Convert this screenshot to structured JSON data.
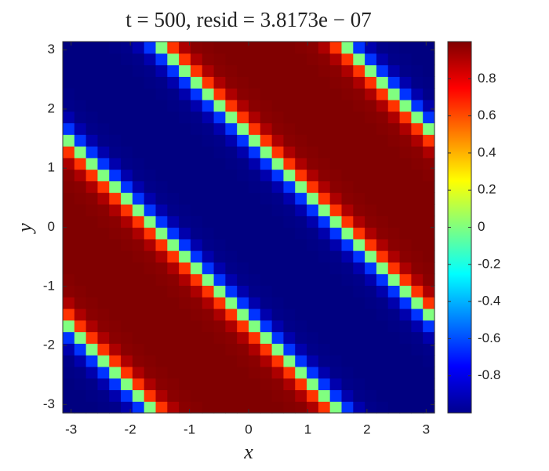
{
  "chart_data": {
    "type": "heatmap",
    "title": "t = 500,  resid = 3.8173e − 07",
    "x_label": "x",
    "y_label": "y",
    "colormap": "jet",
    "xlim": [
      -3.14159,
      3.14159
    ],
    "ylim": [
      -3.14159,
      3.14159
    ],
    "xticks": [
      -3,
      -2,
      -1,
      0,
      1,
      2,
      3
    ],
    "yticks": [
      -3,
      -2,
      -1,
      0,
      1,
      2,
      3
    ],
    "clim": [
      -1,
      1
    ],
    "cticks": [
      -0.8,
      -0.6,
      -0.4,
      -0.2,
      0,
      0.2,
      0.4,
      0.6,
      0.8
    ],
    "z": [
      [
        -1,
        -1,
        -1,
        -0.99,
        -0.98,
        -0.91,
        -0.65,
        0,
        0.65,
        0.91,
        0.98,
        0.99,
        1,
        1,
        1,
        1,
        1,
        1,
        1,
        0.99,
        0.98,
        0.91,
        0.65,
        0,
        -0.65,
        -0.91,
        -0.98,
        -0.99,
        -1,
        -1,
        -1,
        -1
      ],
      [
        -1,
        -1,
        -0.99,
        -0.98,
        -0.91,
        -0.65,
        0,
        0.65,
        0.91,
        0.98,
        0.99,
        1,
        1,
        1,
        1,
        1,
        1,
        1,
        0.99,
        0.98,
        0.91,
        0.65,
        0,
        -0.65,
        -0.91,
        -0.98,
        -0.99,
        -1,
        -1,
        -1,
        -1,
        -1
      ],
      [
        -1,
        -0.99,
        -0.98,
        -0.91,
        -0.65,
        0,
        0.65,
        0.91,
        0.98,
        0.99,
        1,
        1,
        1,
        1,
        1,
        1,
        1,
        0.99,
        0.98,
        0.91,
        0.65,
        0,
        -0.65,
        -0.91,
        -0.98,
        -0.99,
        -1,
        -1,
        -1,
        -1,
        -1,
        -1
      ],
      [
        -0.99,
        -0.98,
        -0.91,
        -0.65,
        0,
        0.65,
        0.91,
        0.98,
        0.99,
        1,
        1,
        1,
        1,
        1,
        1,
        1,
        0.99,
        0.98,
        0.91,
        0.65,
        0,
        -0.65,
        -0.91,
        -0.98,
        -0.99,
        -1,
        -1,
        -1,
        -1,
        -1,
        -1,
        -1
      ],
      [
        -0.98,
        -0.91,
        -0.65,
        0,
        0.65,
        0.91,
        0.98,
        0.99,
        1,
        1,
        1,
        1,
        1,
        1,
        1,
        0.99,
        0.98,
        0.91,
        0.65,
        0,
        -0.65,
        -0.91,
        -0.98,
        -0.99,
        -1,
        -1,
        -1,
        -1,
        -1,
        -1,
        -1,
        -0.99
      ],
      [
        -0.91,
        -0.65,
        0,
        0.65,
        0.91,
        0.98,
        0.99,
        1,
        1,
        1,
        1,
        1,
        1,
        1,
        0.99,
        0.98,
        0.91,
        0.65,
        0,
        -0.65,
        -0.91,
        -0.98,
        -0.99,
        -1,
        -1,
        -1,
        -1,
        -1,
        -1,
        -1,
        -0.99,
        -0.98
      ],
      [
        -0.65,
        0,
        0.65,
        0.91,
        0.98,
        0.99,
        1,
        1,
        1,
        1,
        1,
        1,
        1,
        0.99,
        0.98,
        0.91,
        0.65,
        0,
        -0.65,
        -0.91,
        -0.98,
        -0.99,
        -1,
        -1,
        -1,
        -1,
        -1,
        -1,
        -1,
        -0.99,
        -0.98,
        -0.91
      ],
      [
        0,
        0.65,
        0.91,
        0.98,
        0.99,
        1,
        1,
        1,
        1,
        1,
        1,
        1,
        0.99,
        0.98,
        0.91,
        0.65,
        0,
        -0.65,
        -0.91,
        -0.98,
        -0.99,
        -1,
        -1,
        -1,
        -1,
        -1,
        -1,
        -1,
        -0.99,
        -0.98,
        -0.91,
        -0.65
      ],
      [
        0.65,
        0.91,
        0.98,
        0.99,
        1,
        1,
        1,
        1,
        1,
        1,
        1,
        0.99,
        0.98,
        0.91,
        0.65,
        0,
        -0.65,
        -0.91,
        -0.98,
        -0.99,
        -1,
        -1,
        -1,
        -1,
        -1,
        -1,
        -1,
        -0.99,
        -0.98,
        -0.91,
        -0.65,
        0
      ],
      [
        0.91,
        0.98,
        0.99,
        1,
        1,
        1,
        1,
        1,
        1,
        1,
        0.99,
        0.98,
        0.91,
        0.65,
        0,
        -0.65,
        -0.91,
        -0.98,
        -0.99,
        -1,
        -1,
        -1,
        -1,
        -1,
        -1,
        -1,
        -0.99,
        -0.98,
        -0.91,
        -0.65,
        0,
        0.65
      ],
      [
        0.98,
        0.99,
        1,
        1,
        1,
        1,
        1,
        1,
        1,
        0.99,
        0.98,
        0.91,
        0.65,
        0,
        -0.65,
        -0.91,
        -0.98,
        -0.99,
        -1,
        -1,
        -1,
        -1,
        -1,
        -1,
        -1,
        -0.99,
        -0.98,
        -0.91,
        -0.65,
        0,
        0.65,
        0.91
      ],
      [
        0.99,
        1,
        1,
        1,
        1,
        1,
        1,
        1,
        0.99,
        0.98,
        0.91,
        0.65,
        0,
        -0.65,
        -0.91,
        -0.98,
        -0.99,
        -1,
        -1,
        -1,
        -1,
        -1,
        -1,
        -1,
        -0.99,
        -0.98,
        -0.91,
        -0.65,
        0,
        0.65,
        0.91,
        0.98
      ],
      [
        1,
        1,
        1,
        1,
        1,
        1,
        1,
        0.99,
        0.98,
        0.91,
        0.65,
        0,
        -0.65,
        -0.91,
        -0.98,
        -0.99,
        -1,
        -1,
        -1,
        -1,
        -1,
        -1,
        -1,
        -0.99,
        -0.98,
        -0.91,
        -0.65,
        0,
        0.65,
        0.91,
        0.98,
        0.99
      ],
      [
        1,
        1,
        1,
        1,
        1,
        1,
        0.99,
        0.98,
        0.91,
        0.65,
        0,
        -0.65,
        -0.91,
        -0.98,
        -0.99,
        -1,
        -1,
        -1,
        -1,
        -1,
        -1,
        -1,
        -0.99,
        -0.98,
        -0.91,
        -0.65,
        0,
        0.65,
        0.91,
        0.98,
        0.99,
        1
      ],
      [
        1,
        1,
        1,
        1,
        1,
        0.99,
        0.98,
        0.91,
        0.65,
        0,
        -0.65,
        -0.91,
        -0.98,
        -0.99,
        -1,
        -1,
        -1,
        -1,
        -1,
        -1,
        -1,
        -0.99,
        -0.98,
        -0.91,
        -0.65,
        0,
        0.65,
        0.91,
        0.98,
        0.99,
        1,
        1
      ],
      [
        1,
        1,
        1,
        1,
        0.99,
        0.98,
        0.91,
        0.65,
        0,
        -0.65,
        -0.91,
        -0.98,
        -0.99,
        -1,
        -1,
        -1,
        -1,
        -1,
        -1,
        -1,
        -0.99,
        -0.98,
        -0.91,
        -0.65,
        0,
        0.65,
        0.91,
        0.98,
        0.99,
        1,
        1,
        1
      ],
      [
        1,
        1,
        1,
        0.99,
        0.98,
        0.91,
        0.65,
        0,
        -0.65,
        -0.91,
        -0.98,
        -0.99,
        -1,
        -1,
        -1,
        -1,
        -1,
        -1,
        -1,
        -0.99,
        -0.98,
        -0.91,
        -0.65,
        0,
        0.65,
        0.91,
        0.98,
        0.99,
        1,
        1,
        1,
        1
      ],
      [
        1,
        1,
        0.99,
        0.98,
        0.91,
        0.65,
        0,
        -0.65,
        -0.91,
        -0.98,
        -0.99,
        -1,
        -1,
        -1,
        -1,
        -1,
        -1,
        -1,
        -0.99,
        -0.98,
        -0.91,
        -0.65,
        0,
        0.65,
        0.91,
        0.98,
        0.99,
        1,
        1,
        1,
        1,
        1
      ],
      [
        1,
        0.99,
        0.98,
        0.91,
        0.65,
        0,
        -0.65,
        -0.91,
        -0.98,
        -0.99,
        -1,
        -1,
        -1,
        -1,
        -1,
        -1,
        -1,
        -0.99,
        -0.98,
        -0.91,
        -0.65,
        0,
        0.65,
        0.91,
        0.98,
        0.99,
        1,
        1,
        1,
        1,
        1,
        1
      ],
      [
        0.99,
        0.98,
        0.91,
        0.65,
        0,
        -0.65,
        -0.91,
        -0.98,
        -0.99,
        -1,
        -1,
        -1,
        -1,
        -1,
        -1,
        -1,
        -0.99,
        -0.98,
        -0.91,
        -0.65,
        0,
        0.65,
        0.91,
        0.98,
        0.99,
        1,
        1,
        1,
        1,
        1,
        1,
        1
      ],
      [
        0.98,
        0.91,
        0.65,
        0,
        -0.65,
        -0.91,
        -0.98,
        -0.99,
        -1,
        -1,
        -1,
        -1,
        -1,
        -1,
        -1,
        -0.99,
        -0.98,
        -0.91,
        -0.65,
        0,
        0.65,
        0.91,
        0.98,
        0.99,
        1,
        1,
        1,
        1,
        1,
        1,
        1,
        0.99
      ],
      [
        0.91,
        0.65,
        0,
        -0.65,
        -0.91,
        -0.98,
        -0.99,
        -1,
        -1,
        -1,
        -1,
        -1,
        -1,
        -1,
        -0.99,
        -0.98,
        -0.91,
        -0.65,
        0,
        0.65,
        0.91,
        0.98,
        0.99,
        1,
        1,
        1,
        1,
        1,
        1,
        1,
        0.99,
        0.98
      ],
      [
        0.65,
        0,
        -0.65,
        -0.91,
        -0.98,
        -0.99,
        -1,
        -1,
        -1,
        -1,
        -1,
        -1,
        -1,
        -0.99,
        -0.98,
        -0.91,
        -0.65,
        0,
        0.65,
        0.91,
        0.98,
        0.99,
        1,
        1,
        1,
        1,
        1,
        1,
        1,
        0.99,
        0.98,
        0.91
      ],
      [
        0,
        -0.65,
        -0.91,
        -0.98,
        -0.99,
        -1,
        -1,
        -1,
        -1,
        -1,
        -1,
        -1,
        -0.99,
        -0.98,
        -0.91,
        -0.65,
        0,
        0.65,
        0.91,
        0.98,
        0.99,
        1,
        1,
        1,
        1,
        1,
        1,
        1,
        0.99,
        0.98,
        0.91,
        0.65
      ],
      [
        -0.65,
        -0.91,
        -0.98,
        -0.99,
        -1,
        -1,
        -1,
        -1,
        -1,
        -1,
        -1,
        -0.99,
        -0.98,
        -0.91,
        -0.65,
        0,
        0.65,
        0.91,
        0.98,
        0.99,
        1,
        1,
        1,
        1,
        1,
        1,
        1,
        0.99,
        0.98,
        0.91,
        0.65,
        0
      ],
      [
        -0.91,
        -0.98,
        -0.99,
        -1,
        -1,
        -1,
        -1,
        -1,
        -1,
        -1,
        -0.99,
        -0.98,
        -0.91,
        -0.65,
        0,
        0.65,
        0.91,
        0.98,
        0.99,
        1,
        1,
        1,
        1,
        1,
        1,
        1,
        0.99,
        0.98,
        0.91,
        0.65,
        0,
        -0.65
      ],
      [
        -0.98,
        -0.99,
        -1,
        -1,
        -1,
        -1,
        -1,
        -1,
        -1,
        -0.99,
        -0.98,
        -0.91,
        -0.65,
        0,
        0.65,
        0.91,
        0.98,
        0.99,
        1,
        1,
        1,
        1,
        1,
        1,
        1,
        0.99,
        0.98,
        0.91,
        0.65,
        0,
        -0.65,
        -0.91
      ],
      [
        -0.99,
        -1,
        -1,
        -1,
        -1,
        -1,
        -1,
        -1,
        -0.99,
        -0.98,
        -0.91,
        -0.65,
        0,
        0.65,
        0.91,
        0.98,
        0.99,
        1,
        1,
        1,
        1,
        1,
        1,
        1,
        0.99,
        0.98,
        0.91,
        0.65,
        0,
        -0.65,
        -0.91,
        -0.98
      ],
      [
        -1,
        -1,
        -1,
        -1,
        -1,
        -1,
        -1,
        -0.99,
        -0.98,
        -0.91,
        -0.65,
        0,
        0.65,
        0.91,
        0.98,
        0.99,
        1,
        1,
        1,
        1,
        1,
        1,
        1,
        0.99,
        0.98,
        0.91,
        0.65,
        0,
        -0.65,
        -0.91,
        -0.98,
        -0.99
      ],
      [
        -1,
        -1,
        -1,
        -1,
        -1,
        -1,
        -0.99,
        -0.98,
        -0.91,
        -0.65,
        0,
        0.65,
        0.91,
        0.98,
        0.99,
        1,
        1,
        1,
        1,
        1,
        1,
        1,
        0.99,
        0.98,
        0.91,
        0.65,
        0,
        -0.65,
        -0.91,
        -0.98,
        -0.99,
        -1
      ],
      [
        -1,
        -1,
        -1,
        -1,
        -1,
        -0.99,
        -0.98,
        -0.91,
        -0.65,
        0,
        0.65,
        0.91,
        0.98,
        0.99,
        1,
        1,
        1,
        1,
        1,
        1,
        1,
        0.99,
        0.98,
        0.91,
        0.65,
        0,
        -0.65,
        -0.91,
        -0.98,
        -0.99,
        -1,
        -1
      ],
      [
        -1,
        -1,
        -1,
        -1,
        -0.99,
        -0.98,
        -0.91,
        -0.65,
        0,
        0.65,
        0.91,
        0.98,
        0.99,
        1,
        1,
        1,
        1,
        1,
        1,
        1,
        0.99,
        0.98,
        0.91,
        0.65,
        0,
        -0.65,
        -0.91,
        -0.98,
        -0.99,
        -1,
        -1,
        -1
      ]
    ]
  }
}
